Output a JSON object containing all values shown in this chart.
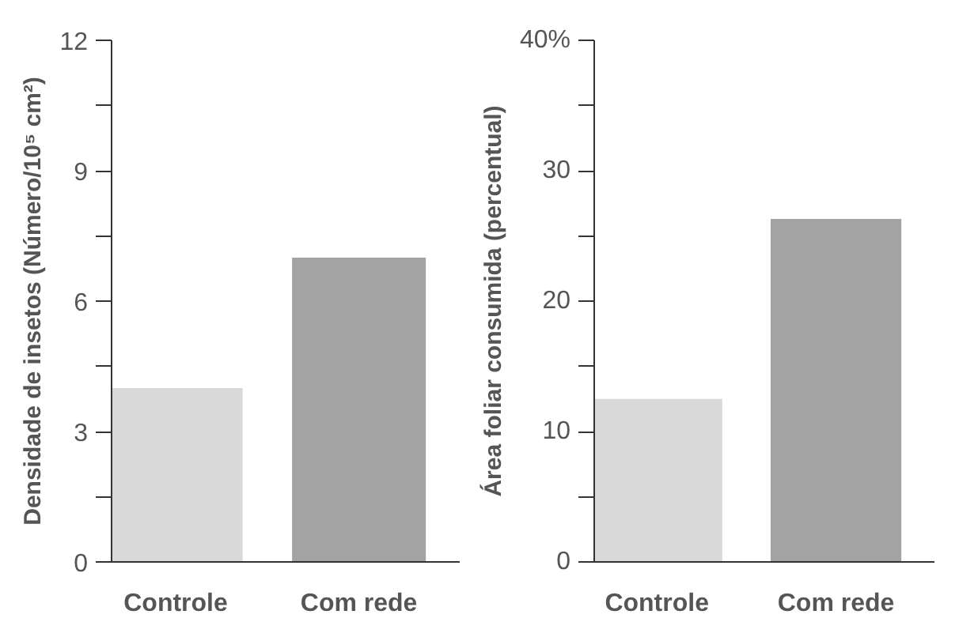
{
  "chart_data": [
    {
      "type": "bar",
      "ylabel": "Densidade de insetos (Número/10⁵ cm²)",
      "categories": [
        "Controle",
        "Com rede"
      ],
      "values": [
        4.0,
        7.0
      ],
      "colors": [
        "#d9d9d9",
        "#a3a3a3"
      ],
      "ylim": [
        0,
        12
      ],
      "yticks": [
        0,
        {
          "value": 1.5,
          "label": null
        },
        3,
        {
          "value": 4.5,
          "label": null
        },
        6,
        {
          "value": 7.5,
          "label": null
        },
        9,
        {
          "value": 10.5,
          "label": null
        },
        12
      ],
      "grid": false
    },
    {
      "type": "bar",
      "ylabel": "Área foliar consumida (percentual)",
      "categories": [
        "Controle",
        "Com rede"
      ],
      "values": [
        12.5,
        26.3
      ],
      "colors": [
        "#d9d9d9",
        "#a3a3a3"
      ],
      "ylim": [
        0,
        40
      ],
      "yticks": [
        0,
        {
          "value": 5,
          "label": null
        },
        10,
        {
          "value": 15,
          "label": null
        },
        20,
        {
          "value": 25,
          "label": null
        },
        30,
        {
          "value": 35,
          "label": null
        },
        {
          "value": 40,
          "label": "40%"
        }
      ],
      "grid": false
    }
  ]
}
